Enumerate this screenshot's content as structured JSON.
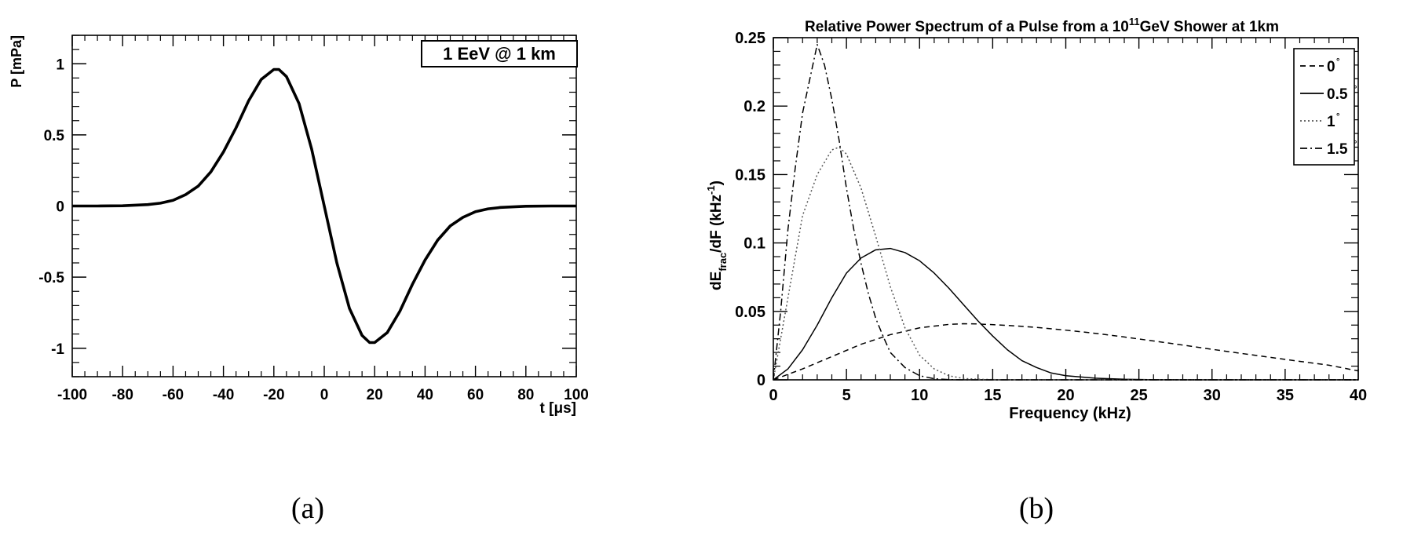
{
  "panel_a": {
    "caption": "(a)",
    "legend_text": "1 EeV @ 1 km"
  },
  "panel_b": {
    "caption": "(b)",
    "title_prefix": "Relative Power Spectrum of a Pulse from a 10",
    "title_sup": "11",
    "title_suffix": "GeV Shower at 1km"
  },
  "chart_data": [
    {
      "type": "line",
      "xlabel": "t [μs]",
      "ylabel": "P [mPa]",
      "xlim": [
        -100,
        100
      ],
      "ylim": [
        -1.2,
        1.2
      ],
      "xticks": [
        -100,
        -80,
        -60,
        -40,
        -20,
        0,
        20,
        40,
        60,
        80,
        100
      ],
      "yticks": [
        -1,
        -0.5,
        0,
        0.5,
        1
      ],
      "ytick_labels": [
        "-1",
        "-0.5",
        "0",
        "0.5",
        "1"
      ],
      "grid": false,
      "legend_position": "top-right",
      "series": [
        {
          "name": "1 EeV @ 1 km",
          "x": [
            -100,
            -90,
            -80,
            -70,
            -65,
            -60,
            -55,
            -50,
            -45,
            -40,
            -35,
            -30,
            -25,
            -20,
            -18,
            -15,
            -10,
            -5,
            0,
            5,
            10,
            15,
            18,
            20,
            25,
            30,
            35,
            40,
            45,
            50,
            55,
            60,
            65,
            70,
            80,
            90,
            100
          ],
          "y": [
            0,
            0,
            0.002,
            0.01,
            0.02,
            0.04,
            0.08,
            0.14,
            0.24,
            0.38,
            0.55,
            0.74,
            0.89,
            0.96,
            0.96,
            0.91,
            0.72,
            0.4,
            0,
            -0.4,
            -0.72,
            -0.91,
            -0.96,
            -0.96,
            -0.89,
            -0.74,
            -0.55,
            -0.38,
            -0.24,
            -0.14,
            -0.08,
            -0.04,
            -0.02,
            -0.01,
            -0.002,
            0,
            0
          ]
        }
      ]
    },
    {
      "type": "line",
      "title": "Relative Power Spectrum of a Pulse from a 10^11GeV Shower at 1km",
      "xlabel": "Frequency (kHz)",
      "ylabel": "dE_frac/dF (kHz^-1)",
      "xlim": [
        0,
        40
      ],
      "ylim": [
        0,
        0.25
      ],
      "xticks": [
        0,
        5,
        10,
        15,
        20,
        25,
        30,
        35,
        40
      ],
      "yticks": [
        0,
        0.05,
        0.1,
        0.15,
        0.2,
        0.25
      ],
      "ytick_labels": [
        "0",
        "0.05",
        "0.1",
        "0.15",
        "0.2",
        "0.25"
      ],
      "grid": false,
      "legend_position": "top-right",
      "series": [
        {
          "name": "0",
          "style": "dashed",
          "x": [
            0,
            2,
            4,
            6,
            8,
            10,
            12,
            13,
            14,
            16,
            18,
            20,
            22,
            24,
            26,
            28,
            30,
            32,
            34,
            36,
            38,
            40
          ],
          "y": [
            0,
            0.008,
            0.017,
            0.026,
            0.033,
            0.038,
            0.0405,
            0.041,
            0.0408,
            0.0398,
            0.0383,
            0.0363,
            0.034,
            0.0313,
            0.0284,
            0.0254,
            0.0223,
            0.0193,
            0.0164,
            0.0135,
            0.0107,
            0.0065
          ]
        },
        {
          "name": "0.5",
          "style": "solid",
          "x": [
            0,
            1,
            2,
            3,
            4,
            5,
            6,
            7,
            8,
            9,
            10,
            11,
            12,
            13,
            14,
            15,
            16,
            17,
            18,
            19,
            20,
            22,
            24,
            26,
            30,
            40
          ],
          "y": [
            0,
            0.008,
            0.022,
            0.04,
            0.06,
            0.078,
            0.089,
            0.095,
            0.096,
            0.093,
            0.087,
            0.078,
            0.067,
            0.055,
            0.043,
            0.032,
            0.022,
            0.014,
            0.009,
            0.005,
            0.003,
            0.0012,
            0.0004,
            0.0001,
            0,
            0
          ]
        },
        {
          "name": "1",
          "style": "dotted",
          "x": [
            0,
            1,
            2,
            3,
            4,
            4.5,
            5,
            6,
            7,
            8,
            9,
            10,
            11,
            12,
            13,
            14,
            16,
            20,
            40
          ],
          "y": [
            0,
            0.06,
            0.12,
            0.15,
            0.168,
            0.17,
            0.165,
            0.14,
            0.105,
            0.068,
            0.038,
            0.018,
            0.008,
            0.003,
            0.001,
            0.0004,
            0,
            0,
            0
          ]
        },
        {
          "name": "1.5",
          "style": "dashdot",
          "x": [
            0,
            0.5,
            1,
            1.5,
            2,
            2.5,
            3,
            3.5,
            4,
            4.5,
            5,
            5.5,
            6,
            6.5,
            7,
            7.5,
            8,
            9,
            10,
            11,
            12,
            13,
            15,
            20,
            40
          ],
          "y": [
            0,
            0.05,
            0.11,
            0.155,
            0.195,
            0.22,
            0.245,
            0.23,
            0.205,
            0.175,
            0.14,
            0.11,
            0.085,
            0.063,
            0.045,
            0.032,
            0.02,
            0.009,
            0.003,
            0.0008,
            0.0002,
            0,
            0,
            0,
            0
          ]
        }
      ]
    }
  ]
}
